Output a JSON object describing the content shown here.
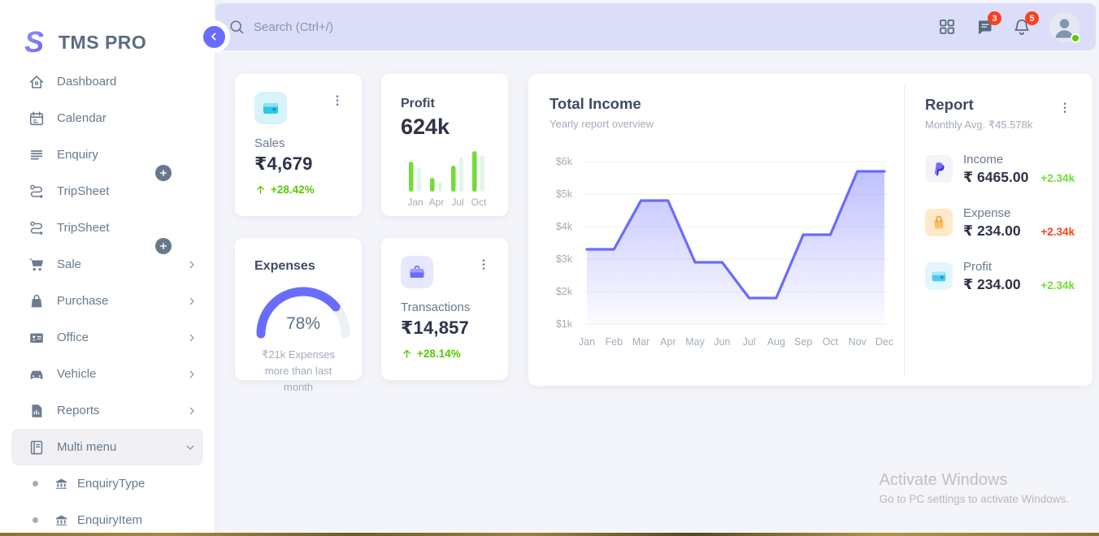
{
  "brand": {
    "name": "TMS PRO"
  },
  "colors": {
    "accent": "#696cff",
    "topbar_bg": "#dcddf9",
    "success": "#56ca00",
    "success_light": "#71dd37",
    "danger": "#ff3e1d",
    "chart_line": "#696cff",
    "muted": "#a1acb8",
    "sidebar_text": "#697a8d"
  },
  "topbar": {
    "search_placeholder": "Search (Ctrl+/)",
    "message_badge": "3",
    "notification_badge": "5",
    "icons": [
      "grid-icon",
      "message-icon",
      "bell-icon",
      "avatar",
      "online-status-dot"
    ]
  },
  "sidebar": {
    "items": [
      {
        "label": "Dashboard",
        "icon": "home"
      },
      {
        "label": "Calendar",
        "icon": "calendar"
      },
      {
        "label": "Enquiry",
        "icon": "list",
        "add_badge": true
      },
      {
        "label": "TripSheet",
        "icon": "route"
      },
      {
        "label": "TripSheet",
        "icon": "route",
        "add_badge": true
      },
      {
        "label": "Sale",
        "icon": "cart",
        "chevron": "right"
      },
      {
        "label": "Purchase",
        "icon": "bag",
        "chevron": "right"
      },
      {
        "label": "Office",
        "icon": "idcard",
        "chevron": "right"
      },
      {
        "label": "Vehicle",
        "icon": "car",
        "chevron": "right"
      },
      {
        "label": "Reports",
        "icon": "report",
        "chevron": "right"
      },
      {
        "label": "Multi menu",
        "icon": "book",
        "chevron": "down",
        "active": true
      },
      {
        "label": "EnquiryType",
        "icon": "bank",
        "sub": true
      },
      {
        "label": "EnquiryItem",
        "icon": "bank",
        "sub": true
      }
    ]
  },
  "cards": {
    "sales": {
      "label": "Sales",
      "value": "₹4,679",
      "delta": "+28.42%",
      "icon": "wallet-cyan-icon"
    },
    "profit": {
      "label": "Profit",
      "value": "624k"
    },
    "expenses": {
      "title": "Expenses",
      "percent_label": "78%",
      "caption": "₹21k Expenses more than last month"
    },
    "transactions": {
      "label": "Transactions",
      "value": "₹14,857",
      "delta": "+28.14%",
      "icon": "briefcase-icon"
    }
  },
  "chart_data": [
    {
      "id": "total-income",
      "type": "line",
      "title": "Total Income",
      "subtitle": "Yearly report overview",
      "x": [
        "Jan",
        "Feb",
        "Mar",
        "Apr",
        "May",
        "Jun",
        "Jul",
        "Aug",
        "Sep",
        "Oct",
        "Nov",
        "Dec"
      ],
      "values": [
        3.3,
        3.3,
        4.8,
        4.8,
        2.9,
        2.9,
        1.8,
        1.8,
        3.75,
        3.75,
        5.7,
        5.7
      ],
      "unit": "$k",
      "y_ticks": [
        "$6k",
        "$5k",
        "$4k",
        "$3k",
        "$2k",
        "$1k"
      ],
      "ylim": [
        1,
        6
      ],
      "grid": true,
      "legend": false,
      "line_color": "#696cff",
      "fill": "vertical gradient #696cff -> transparent"
    },
    {
      "id": "profit-mini-bars",
      "type": "bar",
      "categories": [
        "Jan",
        "Apr",
        "Jul",
        "Oct"
      ],
      "series": [
        {
          "name": "profit",
          "color": "#71dd37",
          "values": [
            37,
            17,
            32,
            50
          ]
        },
        {
          "name": "secondary",
          "color": "#e0f6e8",
          "values": [
            30,
            12,
            42,
            45
          ]
        }
      ],
      "unit": "relative height px"
    },
    {
      "id": "expenses-gauge",
      "type": "gauge",
      "value": 78,
      "max": 100,
      "label": "78%",
      "color": "#696cff",
      "track_color": "#edf0f4"
    }
  ],
  "report": {
    "title": "Report",
    "subtitle": "Monthly Avg. ₹45.578k",
    "rows": [
      {
        "label": "Income",
        "value": "₹ 6465.00",
        "delta": "+2.34k",
        "trend": "up",
        "icon": "paypal",
        "tile": "paypal"
      },
      {
        "label": "Expense",
        "value": "₹ 234.00",
        "delta": "+2.34k",
        "trend": "down",
        "icon": "bag-orange",
        "tile": "bagor"
      },
      {
        "label": "Profit",
        "value": "₹ 234.00",
        "delta": "+2.34k",
        "trend": "up",
        "icon": "wallet-cyan",
        "tile": "walcy"
      }
    ]
  },
  "watermark": {
    "line1": "Activate Windows",
    "line2": "Go to PC settings to activate Windows."
  }
}
